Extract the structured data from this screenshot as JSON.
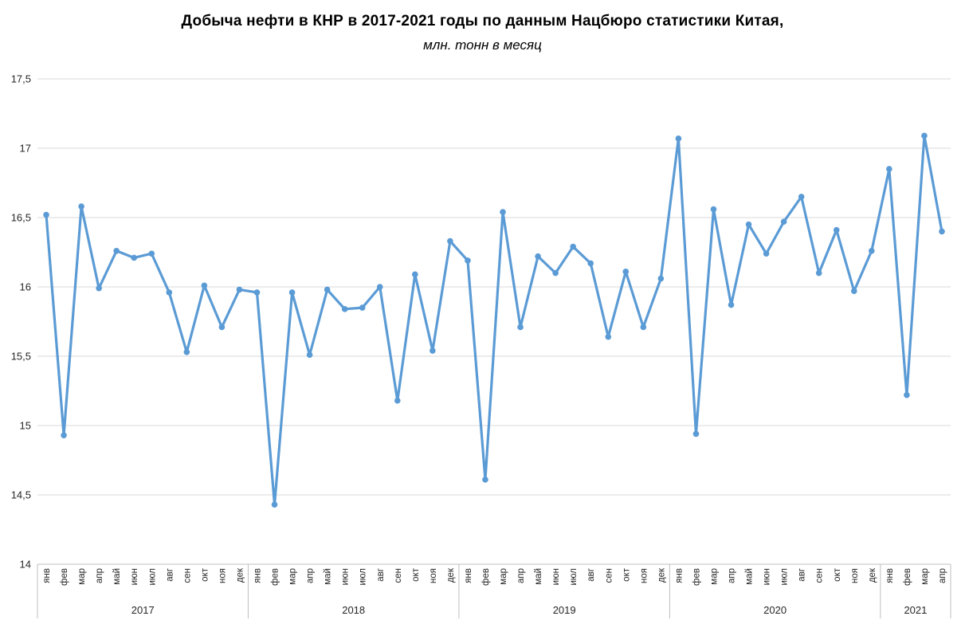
{
  "header": {
    "title": "Добыча нефти в КНР в 2017-2021 годы по данным Нацбюро статистики Китая,",
    "subtitle": "млн. тонн в месяц"
  },
  "chart_data": {
    "type": "line",
    "title": "Добыча нефти в КНР в 2017-2021 годы по данным Нацбюро статистики Китая,",
    "subtitle": "млн. тонн в месяц",
    "xlabel": "",
    "ylabel": "",
    "ylim": [
      14,
      17.5
    ],
    "ytick_step": 0.5,
    "ytick_labels": [
      "14",
      "14,5",
      "15",
      "15,5",
      "16",
      "16,5",
      "17",
      "17,5"
    ],
    "grid": true,
    "legend": "none",
    "line_color": "#5B9BD5",
    "gridline_color": "#D9D9D9",
    "axis_line_color": "#BFBFBF",
    "text_color": "#262626",
    "groups": [
      {
        "year": "2017",
        "months": [
          "янв",
          "фев",
          "мар",
          "апр",
          "май",
          "июн",
          "июл",
          "авг",
          "сен",
          "окт",
          "ноя",
          "дек"
        ],
        "values": [
          16.52,
          14.93,
          16.58,
          15.99,
          16.26,
          16.21,
          16.24,
          15.96,
          15.53,
          16.01,
          15.71,
          15.98
        ]
      },
      {
        "year": "2018",
        "months": [
          "янв",
          "фев",
          "мар",
          "апр",
          "май",
          "июн",
          "июл",
          "авг",
          "сен",
          "окт",
          "ноя",
          "дек"
        ],
        "values": [
          15.96,
          14.43,
          15.96,
          15.51,
          15.98,
          15.84,
          15.85,
          16.0,
          15.18,
          16.09,
          15.54,
          16.33
        ]
      },
      {
        "year": "2019",
        "months": [
          "янв",
          "фев",
          "мар",
          "апр",
          "май",
          "июн",
          "июл",
          "авг",
          "сен",
          "окт",
          "ноя",
          "дек"
        ],
        "values": [
          16.19,
          14.61,
          16.54,
          15.71,
          16.22,
          16.1,
          16.29,
          16.17,
          15.64,
          16.11,
          15.71,
          16.06
        ]
      },
      {
        "year": "2020",
        "months": [
          "янв",
          "фев",
          "мар",
          "апр",
          "май",
          "июн",
          "июл",
          "авг",
          "сен",
          "окт",
          "ноя",
          "дек"
        ],
        "values": [
          17.07,
          14.94,
          16.56,
          15.87,
          16.45,
          16.24,
          16.47,
          16.65,
          16.1,
          16.41,
          15.97,
          16.26
        ]
      },
      {
        "year": "2021",
        "months": [
          "янв",
          "фев",
          "мар",
          "апр"
        ],
        "values": [
          16.85,
          15.22,
          17.09,
          16.4
        ]
      }
    ]
  }
}
